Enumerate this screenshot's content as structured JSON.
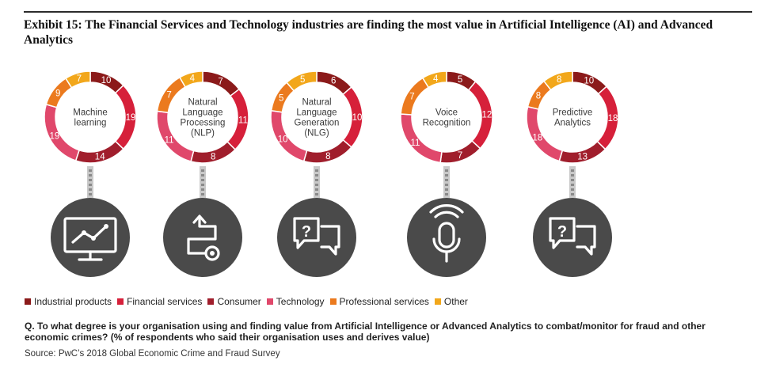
{
  "title": "Exhibit 15: The Financial Services and Technology industries are finding the most value in Artificial Intelligence (AI) and Advanced Analytics",
  "question": "Q. To what degree is your organisation using and finding value from Artificial Intelligence or Advanced Analytics to combat/monitor for fraud and other economic crimes? (% of respondents who said their organisation uses and derives value)",
  "source": "Source: PwC’s 2018 Global Economic Crime and Fraud Survey",
  "chart_data": {
    "type": "pie",
    "style": "donut",
    "legend_placement": "bottom",
    "legend": [
      {
        "name": "Industrial products",
        "color": "#8b1a1a"
      },
      {
        "name": "Financial services",
        "color": "#d6203a"
      },
      {
        "name": "Consumer",
        "color": "#a01e2c"
      },
      {
        "name": "Technology",
        "color": "#e0486b"
      },
      {
        "name": "Professional services",
        "color": "#eb7a1e"
      },
      {
        "name": "Other",
        "color": "#f2a71b"
      }
    ],
    "charts": [
      {
        "label": [
          "Machine",
          "learning"
        ],
        "icon": "monitor-chart-icon",
        "values": [
          10,
          19,
          14,
          19,
          9,
          7
        ]
      },
      {
        "label": [
          "Natural",
          "Language",
          "Processing",
          "(NLP)"
        ],
        "icon": "process-flow-icon",
        "values": [
          7,
          11,
          8,
          11,
          7,
          4
        ]
      },
      {
        "label": [
          "Natural",
          "Language",
          "Generation",
          "(NLG)"
        ],
        "icon": "speech-bubbles-icon",
        "values": [
          6,
          10,
          8,
          10,
          5,
          5
        ]
      },
      {
        "label": [
          "Voice",
          "Recognition"
        ],
        "icon": "microphone-icon",
        "values": [
          5,
          12,
          7,
          11,
          7,
          4
        ]
      },
      {
        "label": [
          "Predictive",
          "Analytics"
        ],
        "icon": "speech-bubbles-icon",
        "values": [
          10,
          18,
          13,
          18,
          8,
          8
        ]
      }
    ]
  }
}
